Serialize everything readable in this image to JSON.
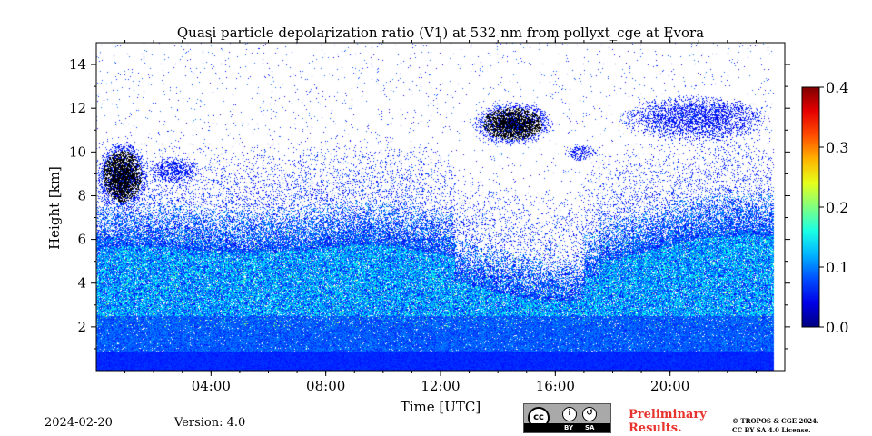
{
  "chart_data": {
    "type": "heatmap",
    "title": "Quasi particle depolarization ratio (V1) at 532 nm from pollyxt_cge at Evora",
    "xlabel": "Time [UTC]",
    "ylabel": "Height [km]",
    "xlim_hours": [
      0,
      24
    ],
    "ylim_km": [
      0,
      15
    ],
    "x_ticks": [
      {
        "hour": 4,
        "label": "04:00"
      },
      {
        "hour": 8,
        "label": "08:00"
      },
      {
        "hour": 12,
        "label": "12:00"
      },
      {
        "hour": 16,
        "label": "16:00"
      },
      {
        "hour": 20,
        "label": "20:00"
      }
    ],
    "x_minor_step_hours": 1,
    "y_ticks": [
      2,
      4,
      6,
      8,
      10,
      12,
      14
    ],
    "colorbar": {
      "colormap": "jet",
      "range": [
        0.0,
        0.4
      ],
      "ticks": [
        "0.4",
        "0.3",
        "0.2",
        "0.1",
        "0.0"
      ]
    },
    "data_extent_hours": [
      0,
      23.6
    ],
    "features": [
      {
        "name": "cirrus",
        "t_start": 0.0,
        "t_end": 1.8,
        "h_bottom_km": 7.3,
        "h_top_km": 10.5,
        "core_above_range": true
      },
      {
        "name": "cirrus",
        "t_start": 1.8,
        "t_end": 3.6,
        "h_bottom_km": 8.5,
        "h_top_km": 9.8,
        "core_above_range": false
      },
      {
        "name": "cirrus",
        "t_start": 13.1,
        "t_end": 15.9,
        "h_bottom_km": 10.3,
        "h_top_km": 12.3,
        "core_above_range": true
      },
      {
        "name": "cirrus",
        "t_start": 16.3,
        "t_end": 17.4,
        "h_bottom_km": 9.6,
        "h_top_km": 10.4,
        "core_above_range": false
      },
      {
        "name": "cirrus",
        "t_start": 18.2,
        "t_end": 23.5,
        "h_bottom_km": 10.5,
        "h_top_km": 12.6,
        "core_above_range": false
      }
    ]
  },
  "footer": {
    "date": "2024-02-20",
    "version": "Version: 4.0",
    "preliminary_line1": "Preliminary",
    "preliminary_line2": "Results.",
    "copyright_line1": "© TROPOS & CGE 2024.",
    "copyright_line2": "CC BY SA 4.0 License.",
    "license_badge": {
      "main": "cc",
      "by": "BY",
      "sa": "SA"
    }
  }
}
